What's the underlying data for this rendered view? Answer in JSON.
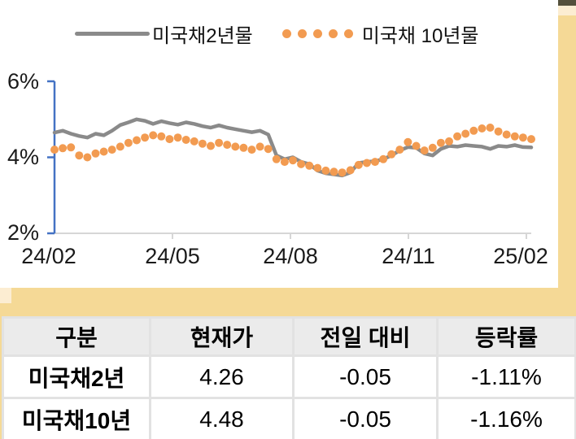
{
  "page": {
    "background_color": "#F5D996",
    "card_color": "#FFFFFF",
    "top_bar_color": "#54503C",
    "cream_color": "#FCEDD2"
  },
  "legend": {
    "series1_label": "미국채2년물",
    "series2_label": "미국채 10년물"
  },
  "chart_data": {
    "type": "line",
    "title": "",
    "xlabel": "",
    "ylabel": "",
    "ylim": [
      2,
      6
    ],
    "y_tick_labels": [
      "6%",
      "4%",
      "2%"
    ],
    "y_tick_values": [
      6,
      4,
      2
    ],
    "x_tick_labels": [
      "24/02",
      "24/05",
      "24/08",
      "24/11",
      "25/02"
    ],
    "y_axis_color": "#4472C4",
    "x_axis_color": "#D6D6D6",
    "grid": "off",
    "legend_position": "top",
    "series": [
      {
        "name": "미국채2년물",
        "style": "solid-line",
        "color": "#8A8A8A",
        "values": [
          4.65,
          4.7,
          4.62,
          4.56,
          4.52,
          4.62,
          4.58,
          4.7,
          4.85,
          4.92,
          5.0,
          4.96,
          4.88,
          4.95,
          4.9,
          4.86,
          4.92,
          4.88,
          4.82,
          4.78,
          4.84,
          4.78,
          4.74,
          4.7,
          4.66,
          4.7,
          4.6,
          4.05,
          3.95,
          4.0,
          3.88,
          3.82,
          3.65,
          3.58,
          3.55,
          3.52,
          3.6,
          3.85,
          3.88,
          3.9,
          3.95,
          4.05,
          4.18,
          4.27,
          4.25,
          4.1,
          4.05,
          4.22,
          4.3,
          4.28,
          4.32,
          4.3,
          4.28,
          4.22,
          4.3,
          4.28,
          4.32,
          4.27,
          4.26
        ]
      },
      {
        "name": "미국채 10년물",
        "style": "dotted",
        "color": "#F29B51",
        "values": [
          4.2,
          4.24,
          4.26,
          4.05,
          4.0,
          4.1,
          4.15,
          4.2,
          4.28,
          4.38,
          4.45,
          4.52,
          4.58,
          4.55,
          4.48,
          4.52,
          4.46,
          4.42,
          4.36,
          4.3,
          4.38,
          4.33,
          4.28,
          4.25,
          4.2,
          4.28,
          4.22,
          3.95,
          3.88,
          3.92,
          3.82,
          3.78,
          3.72,
          3.65,
          3.62,
          3.6,
          3.66,
          3.8,
          3.85,
          3.88,
          3.95,
          4.08,
          4.2,
          4.4,
          4.3,
          4.18,
          4.25,
          4.38,
          4.42,
          4.55,
          4.62,
          4.7,
          4.76,
          4.78,
          4.68,
          4.6,
          4.55,
          4.52,
          4.48
        ]
      }
    ]
  },
  "table": {
    "headers": [
      "구분",
      "현재가",
      "전일 대비",
      "등락률"
    ],
    "rows": [
      [
        "미국채2년",
        "4.26",
        "-0.05",
        "-1.11%"
      ],
      [
        "미국채10년",
        "4.48",
        "-0.05",
        "-1.16%"
      ]
    ]
  }
}
